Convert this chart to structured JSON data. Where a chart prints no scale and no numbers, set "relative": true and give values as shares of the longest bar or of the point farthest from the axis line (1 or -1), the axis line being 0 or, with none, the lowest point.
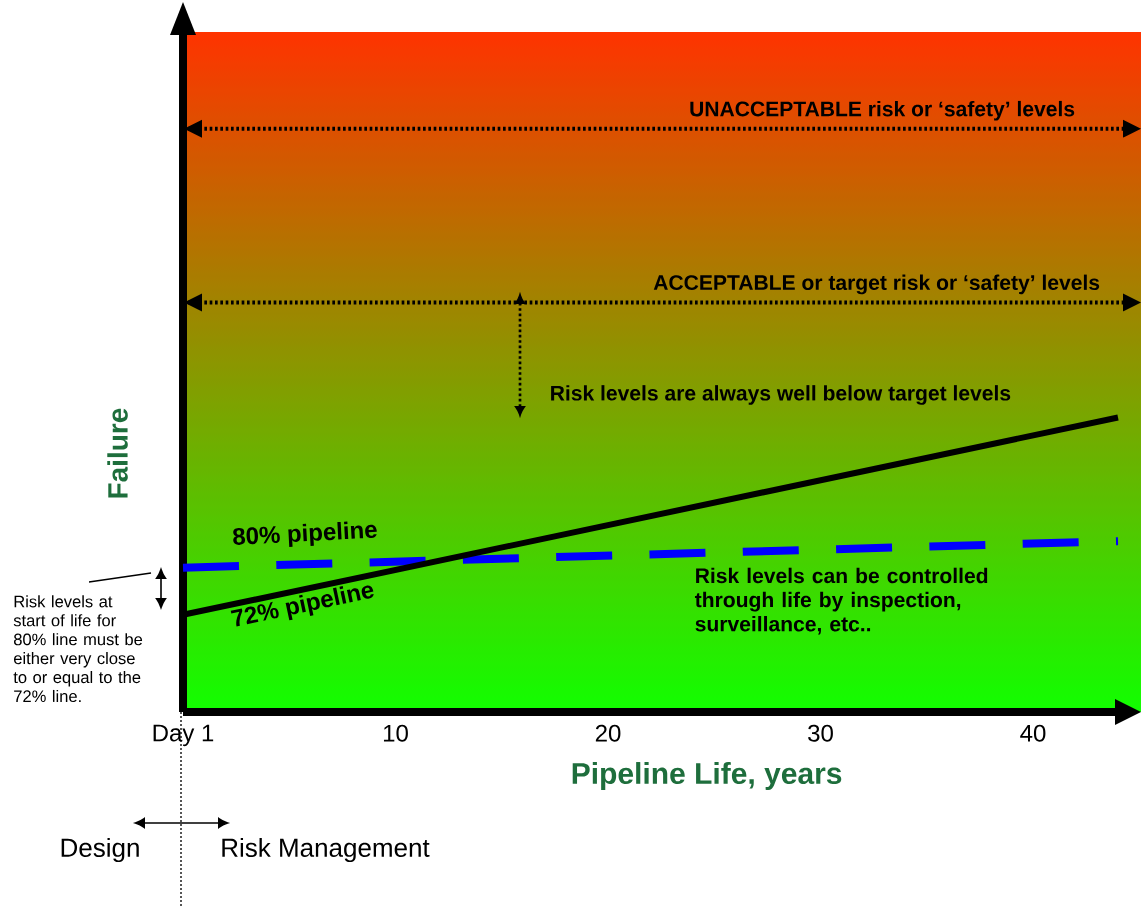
{
  "chart_data": {
    "type": "line",
    "relative": true,
    "xlabel": "Pipeline Life, years",
    "ylabel": "Failure",
    "x": [
      0,
      44
    ],
    "xlim": [
      0,
      44
    ],
    "xticks": [
      {
        "value": 0,
        "label": "Day 1"
      },
      10,
      20,
      30,
      40
    ],
    "marker": "none",
    "series": [
      {
        "name": "80% pipeline",
        "color": "#0000ff",
        "line_style": "dashed",
        "values": [
          0.49,
          0.58
        ]
      },
      {
        "name": "72% pipeline",
        "color": "#000000",
        "line_style": "solid",
        "values": [
          0.33,
          1
        ]
      }
    ],
    "ref_lines": [
      {
        "axis": "y",
        "value": 1.98,
        "label": "UNACCEPTABLE risk or ‘safety’ levels",
        "color": "#000000",
        "line_style": "dotted"
      },
      {
        "axis": "y",
        "value": 1.39,
        "label": "ACCEPTABLE or target risk or ‘safety’ levels",
        "color": "#000000",
        "line_style": "dotted"
      }
    ],
    "annotations": [
      "Risk levels are always well below target levels",
      "Risk levels can be controlled through life by inspection, surveillance, etc..",
      "Risk levels at start of life for 80% line must be either very close to  or equal to the 72% line.",
      "Design",
      "Risk Management"
    ]
  }
}
